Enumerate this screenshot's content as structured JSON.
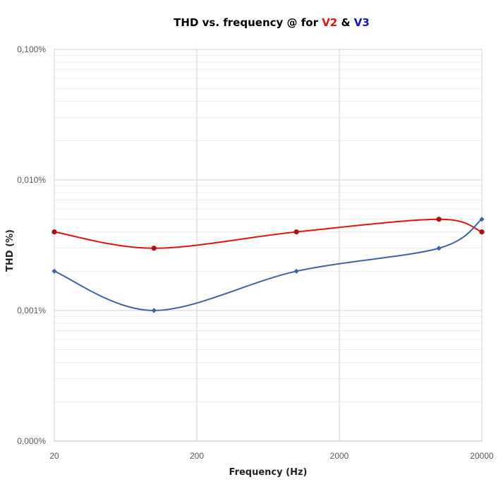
{
  "chart_data": {
    "type": "line",
    "title": {
      "prefix": "THD vs. frequency @ for ",
      "series_a": "V2",
      "joiner": " & ",
      "series_b": "V3"
    },
    "xlabel": "Frequency (Hz)",
    "ylabel": "THD (%)",
    "x_scale": "log",
    "y_scale": "log",
    "xlim": [
      20,
      20000
    ],
    "ylim": [
      0.0001,
      0.1
    ],
    "x_ticks": [
      20,
      200,
      2000,
      20000
    ],
    "x_tick_labels": [
      "20",
      "200",
      "2000",
      "20000"
    ],
    "y_ticks": [
      0.0001,
      0.001,
      0.01,
      0.1
    ],
    "y_tick_labels": [
      "0,000%",
      "0,001%",
      "0,010%",
      "0,100%"
    ],
    "grid": true,
    "legend": "none",
    "series": [
      {
        "name": "V2",
        "color": "#e3120b",
        "marker_color": "#b01010",
        "marker": "circle",
        "x": [
          20,
          100,
          1000,
          10000,
          20000
        ],
        "y": [
          0.004,
          0.003,
          0.004,
          0.005,
          0.004
        ]
      },
      {
        "name": "V3",
        "color": "#3d64a8",
        "marker_color": "#3d64a8",
        "marker": "diamond",
        "x": [
          20,
          100,
          1000,
          10000,
          20000
        ],
        "y": [
          0.002,
          0.001,
          0.002,
          0.003,
          0.005
        ]
      }
    ],
    "colors": {
      "title_v2": "#e3120b",
      "title_v3": "#1414c8",
      "major_grid": "#d0d0d0",
      "minor_grid": "#ececec",
      "axis": "#bfbfbf"
    }
  }
}
